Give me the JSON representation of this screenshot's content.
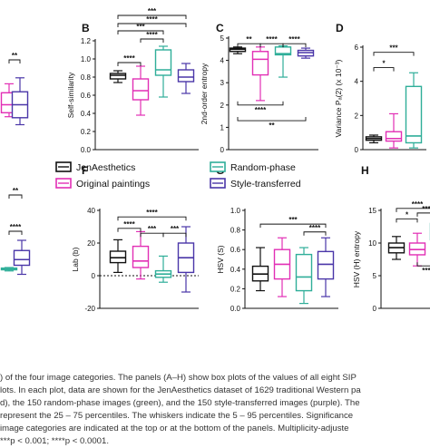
{
  "colors": {
    "jen": "#111111",
    "orig": "#e22fb5",
    "rand": "#2fae99",
    "style": "#4a36a8",
    "sig": "#111111",
    "zero_line": "#111111"
  },
  "legend": [
    {
      "label": "JenAesthetics",
      "color_key": "jen"
    },
    {
      "label": "Original paintings",
      "color_key": "orig"
    },
    {
      "label": "Random-phase",
      "color_key": "rand"
    },
    {
      "label": "Style-transferred",
      "color_key": "style"
    }
  ],
  "chart_data": [
    {
      "id": "A-partial",
      "type": "box",
      "panel_letter": "",
      "ylabel": "",
      "ylim": [
        0,
        1
      ],
      "yticks": [],
      "y_tick_labels": [],
      "boxes": [
        {
          "group": "orig",
          "whisker_low": 0.33,
          "q1": 0.37,
          "median": 0.45,
          "q3": 0.57,
          "whisker_high": 0.66
        },
        {
          "group": "style",
          "whisker_low": 0.25,
          "q1": 0.32,
          "median": 0.45,
          "q3": 0.58,
          "whisker_high": 0.72
        }
      ],
      "sig_top": [
        {
          "label": "**",
          "level": 0.9
        }
      ],
      "sig_bottom": []
    },
    {
      "id": "B",
      "type": "box",
      "panel_letter": "B",
      "ylabel": "Self-similarity",
      "ylim": [
        0.0,
        1.2
      ],
      "yticks": [
        0.0,
        0.2,
        0.4,
        0.6,
        0.8,
        1.0,
        1.2
      ],
      "y_tick_labels": [
        "0.0",
        "0.2",
        "0.4",
        "0.6",
        "0.8",
        "1.0",
        "1.2"
      ],
      "boxes": [
        {
          "group": "jen",
          "whisker_low": 0.74,
          "q1": 0.78,
          "median": 0.82,
          "q3": 0.84,
          "whisker_high": 0.87
        },
        {
          "group": "orig",
          "whisker_low": 0.38,
          "q1": 0.55,
          "median": 0.65,
          "q3": 0.78,
          "whisker_high": 0.92
        },
        {
          "group": "rand",
          "whisker_low": 0.58,
          "q1": 0.82,
          "median": 0.88,
          "q3": 1.1,
          "whisker_high": 1.14
        },
        {
          "group": "style",
          "whisker_low": 0.62,
          "q1": 0.75,
          "median": 0.8,
          "q3": 0.88,
          "whisker_high": 0.95
        }
      ],
      "sig_top": [
        {
          "from": 1,
          "to": 2,
          "label": "****",
          "level": 0.96
        },
        {
          "from": 2,
          "to": 3,
          "label": "****",
          "level": 1.22
        },
        {
          "from": 1,
          "to": 3,
          "label": "***",
          "level": 1.31
        },
        {
          "from": 1,
          "to": 4,
          "label": "****",
          "level": 1.39
        },
        {
          "from": 1,
          "to": 4,
          "label": "***",
          "level": 1.48
        }
      ],
      "sig_bottom": []
    },
    {
      "id": "C",
      "type": "box",
      "panel_letter": "C",
      "ylabel": "2nd-order entropy",
      "ylim": [
        0,
        5
      ],
      "yticks": [
        0,
        1,
        2,
        3,
        4,
        5
      ],
      "y_tick_labels": [
        "0",
        "1",
        "2",
        "3",
        "4",
        "5"
      ],
      "boxes": [
        {
          "group": "jen",
          "whisker_low": 4.3,
          "q1": 4.4,
          "median": 4.5,
          "q3": 4.55,
          "whisker_high": 4.6
        },
        {
          "group": "orig",
          "whisker_low": 2.2,
          "q1": 3.35,
          "median": 4.05,
          "q3": 4.4,
          "whisker_high": 4.6
        },
        {
          "group": "rand",
          "whisker_low": 3.25,
          "q1": 4.25,
          "median": 4.3,
          "q3": 4.6,
          "whisker_high": 4.65
        },
        {
          "group": "style",
          "whisker_low": 4.1,
          "q1": 4.2,
          "median": 4.35,
          "q3": 4.45,
          "whisker_high": 4.55
        }
      ],
      "sig_top": [
        {
          "from": 1,
          "to": 2,
          "label": "**",
          "level": 4.75
        },
        {
          "from": 2,
          "to": 3,
          "label": "****",
          "level": 4.75
        },
        {
          "from": 3,
          "to": 4,
          "label": "****",
          "level": 4.75
        }
      ],
      "sig_bottom": [
        {
          "from": 1,
          "to": 3,
          "label": "****",
          "level": 2.0
        },
        {
          "from": 1,
          "to": 4,
          "label": "**",
          "level": 1.3
        }
      ]
    },
    {
      "id": "D",
      "type": "box",
      "panel_letter": "D",
      "ylabel": "Variance Pₐ(2) (x 10⁻³)",
      "ylim": [
        0,
        6
      ],
      "yticks": [
        0,
        2,
        4,
        6
      ],
      "y_tick_labels": [
        "0",
        "2",
        "4",
        "6"
      ],
      "boxes": [
        {
          "group": "jen",
          "whisker_low": 0.4,
          "q1": 0.55,
          "median": 0.65,
          "q3": 0.75,
          "whisker_high": 0.85
        },
        {
          "group": "orig",
          "whisker_low": 0.1,
          "q1": 0.5,
          "median": 0.65,
          "q3": 1.05,
          "whisker_high": 2.1
        },
        {
          "group": "rand",
          "whisker_low": 0.1,
          "q1": 0.4,
          "median": 0.8,
          "q3": 3.7,
          "whisker_high": 4.5
        }
      ],
      "sig_top": [
        {
          "from": 1,
          "to": 2,
          "label": "*",
          "level": 4.8
        },
        {
          "from": 1,
          "to": 3,
          "label": "***",
          "level": 5.7
        }
      ],
      "sig_bottom": []
    },
    {
      "id": "E-partial",
      "type": "box",
      "panel_letter": "",
      "ylabel": "",
      "ylim": [
        0,
        1
      ],
      "yticks": [],
      "y_tick_labels": [],
      "boxes": [
        {
          "group": "rand",
          "whisker_low": 0.21,
          "q1": 0.22,
          "median": 0.225,
          "q3": 0.235,
          "whisker_high": 0.24
        },
        {
          "group": "style",
          "whisker_low": 0.18,
          "q1": 0.26,
          "median": 0.31,
          "q3": 0.39,
          "whisker_high": 0.48
        }
      ],
      "sig_top": [
        {
          "label": "**",
          "level": 0.88
        },
        {
          "label": "****",
          "level": 0.56
        }
      ],
      "sig_bottom": []
    },
    {
      "id": "F",
      "type": "box",
      "panel_letter": "F",
      "ylabel": "Lab (b)",
      "ylim": [
        -20,
        40
      ],
      "yticks": [
        -20,
        0,
        20,
        40
      ],
      "y_tick_labels": [
        "-20",
        "0",
        "20",
        "40"
      ],
      "zero_line": 0,
      "boxes": [
        {
          "group": "jen",
          "whisker_low": 2,
          "q1": 8,
          "median": 11,
          "q3": 15,
          "whisker_high": 22
        },
        {
          "group": "orig",
          "whisker_low": -2,
          "q1": 5,
          "median": 9,
          "q3": 18,
          "whisker_high": 27
        },
        {
          "group": "rand",
          "whisker_low": -4,
          "q1": -1,
          "median": 1,
          "q3": 3,
          "whisker_high": 12
        },
        {
          "group": "style",
          "whisker_low": -10,
          "q1": 2,
          "median": 11,
          "q3": 20,
          "whisker_high": 30
        }
      ],
      "sig_top": [
        {
          "from": 1,
          "to": 2,
          "label": "****",
          "level": 29
        },
        {
          "from": 2,
          "to": 3,
          "label": "***",
          "level": 26
        },
        {
          "from": 3,
          "to": 4,
          "label": "***",
          "level": 26
        },
        {
          "from": 1,
          "to": 4,
          "label": "****",
          "level": 36
        }
      ],
      "sig_bottom": []
    },
    {
      "id": "G",
      "type": "box",
      "panel_letter": "G",
      "ylabel": "HSV (S)",
      "ylim": [
        0.0,
        1.0
      ],
      "yticks": [
        0.0,
        0.2,
        0.4,
        0.6,
        0.8,
        1.0
      ],
      "y_tick_labels": [
        "0.0",
        "0.2",
        "0.4",
        "0.6",
        "0.8",
        "1.0"
      ],
      "boxes": [
        {
          "group": "jen",
          "whisker_low": 0.18,
          "q1": 0.28,
          "median": 0.35,
          "q3": 0.43,
          "whisker_high": 0.62
        },
        {
          "group": "orig",
          "whisker_low": 0.12,
          "q1": 0.3,
          "median": 0.45,
          "q3": 0.6,
          "whisker_high": 0.72
        },
        {
          "group": "rand",
          "whisker_low": 0.05,
          "q1": 0.18,
          "median": 0.32,
          "q3": 0.55,
          "whisker_high": 0.62
        },
        {
          "group": "style",
          "whisker_low": 0.12,
          "q1": 0.3,
          "median": 0.45,
          "q3": 0.58,
          "whisker_high": 0.72
        }
      ],
      "sig_top": [
        {
          "from": 3,
          "to": 4,
          "label": "****",
          "level": 0.78
        },
        {
          "from": 1,
          "to": 4,
          "label": "***",
          "level": 0.86
        }
      ],
      "sig_bottom": []
    },
    {
      "id": "H",
      "type": "box",
      "panel_letter": "H",
      "ylabel": "HSV (H) entropy",
      "ylim": [
        0,
        15
      ],
      "yticks": [
        0,
        5,
        10,
        15
      ],
      "y_tick_labels": [
        "0",
        "5",
        "10",
        "15"
      ],
      "boxes": [
        {
          "group": "jen",
          "whisker_low": 7.5,
          "q1": 8.5,
          "median": 9.3,
          "q3": 10.0,
          "whisker_high": 11.0
        },
        {
          "group": "orig",
          "whisker_low": 6.5,
          "q1": 8.2,
          "median": 9.0,
          "q3": 10.0,
          "whisker_high": 11.5
        },
        {
          "group": "rand",
          "whisker_low": 9.0,
          "q1": 10.5,
          "median": 11.8,
          "q3": 13.0,
          "whisker_high": 14.0
        }
      ],
      "sig_top": [
        {
          "from": 1,
          "to": 2,
          "label": "*",
          "level": 13.7
        },
        {
          "from": 1,
          "to": 3,
          "label": "****",
          "level": 15.3
        },
        {
          "from": 2,
          "to": 3,
          "label": "****",
          "level": 14.6
        }
      ],
      "sig_bottom": [
        {
          "from": 2,
          "to": 3,
          "label": "****",
          "level": 6.5
        },
        {
          "from": 3,
          "to": 3,
          "label": "*",
          "level": 5.2
        }
      ]
    }
  ],
  "caption_lines": [
    ") of the four image categories. The panels (A–H) show box plots of the values of all eight SIP",
    "lots. In each plot, data are shown for the JenAesthetics dataset of 1629 traditional Western pa",
    "d), the 150 random-phase images (green), and the 150 style-transferred images (purple). The",
    " represent the 25 – 75 percentiles. The whiskers indicate the 5 – 95 percentiles. Significance",
    " image categories are indicated at the top or at the bottom of the panels. Multiplicity-adjuste",
    "***p < 0.001; ****p < 0.0001."
  ]
}
